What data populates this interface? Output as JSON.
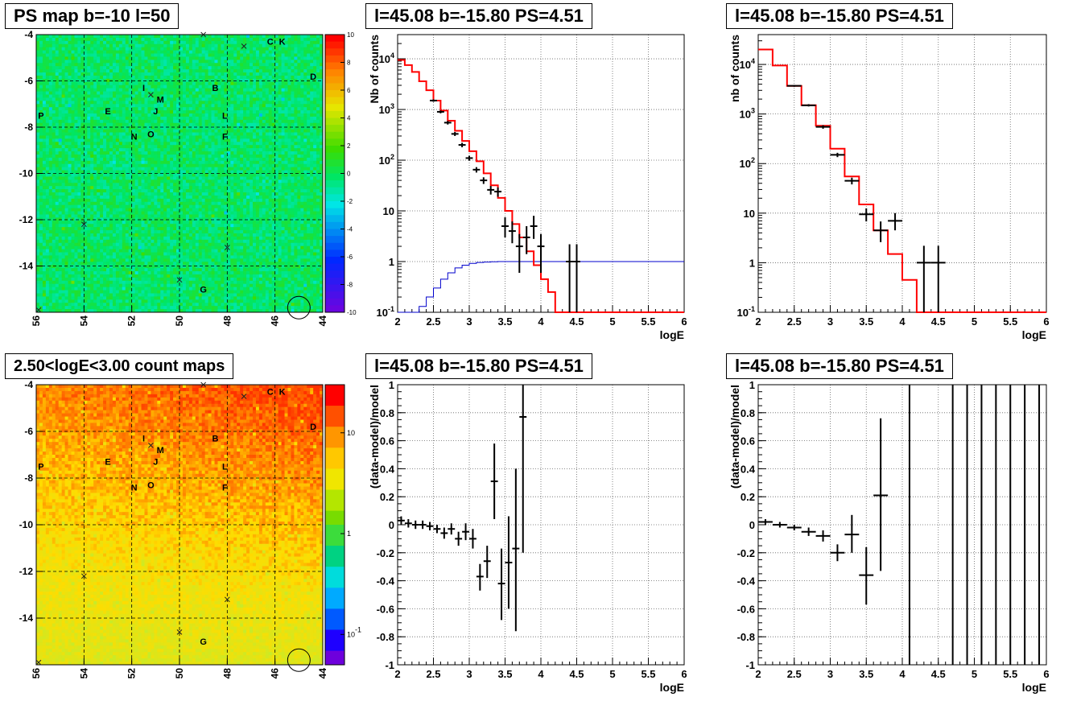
{
  "titles": {
    "ps_map": "PS map b=-10 l=50",
    "count_map": "2.50<logE<3.00 count maps",
    "spec1": "l=45.08 b=-15.80 PS=4.51",
    "spec2": "l=45.08 b=-15.80 PS=4.51",
    "res1": "l=45.08 b=-15.80 PS=4.51",
    "res2": "l=45.08 b=-15.80 PS=4.51"
  },
  "chart_data": [
    {
      "type": "heatmap",
      "id": "ps_map",
      "title": "PS map b=-10 l=50",
      "x_ticks": [
        "56",
        "54",
        "52",
        "50",
        "48",
        "46",
        "44"
      ],
      "y_ticks": [
        "-4",
        "-6",
        "-8",
        "-10",
        "-12",
        "-14"
      ],
      "xlim": [
        56,
        44
      ],
      "ylim": [
        -16,
        -4
      ],
      "colorbar_ticks": [
        "10",
        "8",
        "6",
        "4",
        "2",
        "0",
        "-2",
        "-4",
        "-6",
        "-8",
        "-10"
      ],
      "colorbar_range": [
        -10,
        10
      ],
      "dominant_value": 0,
      "grid": true,
      "source_labels": [
        {
          "t": "C",
          "l": 46.2,
          "b": -4.3
        },
        {
          "t": "K",
          "l": 45.7,
          "b": -4.3
        },
        {
          "t": "D",
          "l": 44.4,
          "b": -5.8
        },
        {
          "t": "I",
          "l": 51.5,
          "b": -6.3
        },
        {
          "t": "B",
          "l": 48.5,
          "b": -6.3
        },
        {
          "t": "M",
          "l": 50.8,
          "b": -6.8
        },
        {
          "t": "E",
          "l": 53.0,
          "b": -7.3
        },
        {
          "t": "J",
          "l": 51.0,
          "b": -7.3
        },
        {
          "t": "P",
          "l": 55.8,
          "b": -7.5
        },
        {
          "t": "L",
          "l": 48.1,
          "b": -7.5
        },
        {
          "t": "N",
          "l": 51.9,
          "b": -8.4
        },
        {
          "t": "O",
          "l": 51.2,
          "b": -8.3
        },
        {
          "t": "F",
          "l": 48.1,
          "b": -8.4
        },
        {
          "t": "G",
          "l": 49.0,
          "b": -15.0
        }
      ],
      "markers": [
        {
          "l": 49.0,
          "b": -4.0
        },
        {
          "l": 47.3,
          "b": -4.5
        },
        {
          "l": 51.2,
          "b": -6.6
        },
        {
          "l": 54.0,
          "b": -12.2
        },
        {
          "l": 48.0,
          "b": -13.2
        },
        {
          "l": 50.0,
          "b": -14.6
        },
        {
          "l": 55.9,
          "b": -15.9
        }
      ],
      "circle": {
        "l": 45.0,
        "b": -15.8
      }
    },
    {
      "type": "heatmap",
      "id": "count_map",
      "title": "2.50<logE<3.00 count maps",
      "x_ticks": [
        "56",
        "54",
        "52",
        "50",
        "48",
        "46",
        "44"
      ],
      "y_ticks": [
        "-4",
        "-6",
        "-8",
        "-10",
        "-12",
        "-14"
      ],
      "xlim": [
        56,
        44
      ],
      "ylim": [
        -16,
        -4
      ],
      "colorbar_ticks": [
        "10",
        "1",
        "10^-1"
      ],
      "colorbar_scale": "log",
      "colorbar_range": [
        0.05,
        30
      ],
      "grid": true,
      "source_labels": [
        {
          "t": "C",
          "l": 46.2,
          "b": -4.3
        },
        {
          "t": "K",
          "l": 45.7,
          "b": -4.3
        },
        {
          "t": "D",
          "l": 44.4,
          "b": -5.8
        },
        {
          "t": "I",
          "l": 51.5,
          "b": -6.3
        },
        {
          "t": "B",
          "l": 48.5,
          "b": -6.3
        },
        {
          "t": "M",
          "l": 50.8,
          "b": -6.8
        },
        {
          "t": "E",
          "l": 53.0,
          "b": -7.3
        },
        {
          "t": "J",
          "l": 51.0,
          "b": -7.3
        },
        {
          "t": "P",
          "l": 55.8,
          "b": -7.5
        },
        {
          "t": "L",
          "l": 48.1,
          "b": -7.5
        },
        {
          "t": "N",
          "l": 51.9,
          "b": -8.4
        },
        {
          "t": "O",
          "l": 51.2,
          "b": -8.3
        },
        {
          "t": "F",
          "l": 48.1,
          "b": -8.4
        },
        {
          "t": "G",
          "l": 49.0,
          "b": -15.0
        }
      ],
      "markers": [
        {
          "l": 49.0,
          "b": -4.0
        },
        {
          "l": 47.3,
          "b": -4.5
        },
        {
          "l": 51.2,
          "b": -6.6
        },
        {
          "l": 54.0,
          "b": -12.2
        },
        {
          "l": 48.0,
          "b": -13.2
        },
        {
          "l": 50.0,
          "b": -14.6
        },
        {
          "l": 55.9,
          "b": -15.9
        }
      ],
      "circle": {
        "l": 45.0,
        "b": -15.8
      }
    },
    {
      "type": "line",
      "id": "spec1",
      "title": "l=45.08 b=-15.80 PS=4.51",
      "xlabel": "logE",
      "ylabel": "Nb of counts",
      "xlim": [
        2,
        6
      ],
      "ylim": [
        0.1,
        30000
      ],
      "yscale": "log",
      "x_ticks": [
        "2",
        "2.5",
        "3",
        "3.5",
        "4",
        "4.5",
        "5",
        "5.5",
        "6"
      ],
      "y_ticks": [
        "10^-1",
        "1",
        "10",
        "10^2",
        "10^3",
        "10^4"
      ],
      "grid": true,
      "model": {
        "color": "#ff0000",
        "edges": [
          2,
          2.1,
          2.2,
          2.3,
          2.4,
          2.5,
          2.6,
          2.7,
          2.8,
          2.9,
          3,
          3.1,
          3.2,
          3.3,
          3.4,
          3.5,
          3.6,
          3.7,
          3.8,
          3.9,
          4,
          4.1,
          4.2,
          6
        ],
        "values": [
          9500,
          7500,
          5500,
          3600,
          2400,
          1500,
          950,
          600,
          380,
          240,
          150,
          95,
          55,
          32,
          18,
          10,
          5.5,
          3,
          1.6,
          0.85,
          0.45,
          0.25,
          0.1
        ]
      },
      "efficiency": {
        "color": "#0000cc",
        "edges": [
          2,
          2.1,
          2.2,
          2.3,
          2.4,
          2.5,
          2.6,
          2.7,
          2.8,
          2.9,
          3,
          3.1,
          3.2,
          3.3,
          3.4,
          6
        ],
        "values": [
          0.1,
          0.1,
          0.1,
          0.13,
          0.2,
          0.3,
          0.45,
          0.6,
          0.75,
          0.85,
          0.92,
          0.96,
          0.98,
          0.99,
          1.0
        ]
      },
      "data": [
        {
          "x": 2.5,
          "y": 1500,
          "lo": 1420,
          "hi": 1580
        },
        {
          "x": 2.6,
          "y": 900,
          "lo": 840,
          "hi": 960
        },
        {
          "x": 2.7,
          "y": 550,
          "lo": 505,
          "hi": 595
        },
        {
          "x": 2.8,
          "y": 330,
          "lo": 300,
          "hi": 360
        },
        {
          "x": 2.9,
          "y": 200,
          "lo": 180,
          "hi": 220
        },
        {
          "x": 3.0,
          "y": 110,
          "lo": 98,
          "hi": 122
        },
        {
          "x": 3.1,
          "y": 65,
          "lo": 57,
          "hi": 73
        },
        {
          "x": 3.2,
          "y": 40,
          "lo": 34,
          "hi": 46
        },
        {
          "x": 3.3,
          "y": 26,
          "lo": 21,
          "hi": 31
        },
        {
          "x": 3.4,
          "y": 24,
          "lo": 19,
          "hi": 29
        },
        {
          "x": 3.5,
          "y": 5,
          "lo": 3,
          "hi": 7.5
        },
        {
          "x": 3.6,
          "y": 4,
          "lo": 2.3,
          "hi": 6.2
        },
        {
          "x": 3.7,
          "y": 2,
          "lo": 0.6,
          "hi": 3.5
        },
        {
          "x": 3.8,
          "y": 3,
          "lo": 1.4,
          "hi": 5
        },
        {
          "x": 3.9,
          "y": 5,
          "lo": 2.8,
          "hi": 8
        },
        {
          "x": 4.0,
          "y": 2,
          "lo": 0.6,
          "hi": 3.5
        },
        {
          "x": 4.4,
          "y": 1,
          "lo": 0.1,
          "hi": 2.2
        },
        {
          "x": 4.5,
          "y": 1,
          "lo": 0.1,
          "hi": 2.2
        }
      ],
      "xerr": 0.05
    },
    {
      "type": "line",
      "id": "spec2",
      "title": "l=45.08 b=-15.80 PS=4.51",
      "xlabel": "logE",
      "ylabel": "nb of counts",
      "xlim": [
        2,
        6
      ],
      "ylim": [
        0.1,
        40000
      ],
      "yscale": "log",
      "x_ticks": [
        "2",
        "2.5",
        "3",
        "3.5",
        "4",
        "4.5",
        "5",
        "5.5",
        "6"
      ],
      "y_ticks": [
        "10^-1",
        "1",
        "10",
        "10^2",
        "10^3",
        "10^4"
      ],
      "grid": true,
      "model": {
        "color": "#ff0000",
        "edges": [
          2,
          2.2,
          2.4,
          2.6,
          2.8,
          3,
          3.2,
          3.4,
          3.6,
          3.8,
          4,
          4.2,
          6
        ],
        "values": [
          20000,
          9500,
          3700,
          1500,
          580,
          200,
          55,
          15,
          4.5,
          1.5,
          0.45,
          0.1
        ]
      },
      "data": [
        {
          "x": 2.5,
          "y": 3700,
          "lo": 3550,
          "hi": 3850
        },
        {
          "x": 2.7,
          "y": 1500,
          "lo": 1420,
          "hi": 1580
        },
        {
          "x": 2.9,
          "y": 550,
          "lo": 505,
          "hi": 595
        },
        {
          "x": 3.1,
          "y": 150,
          "lo": 135,
          "hi": 165
        },
        {
          "x": 3.3,
          "y": 45,
          "lo": 38,
          "hi": 52
        },
        {
          "x": 3.5,
          "y": 9.5,
          "lo": 6.8,
          "hi": 12.5
        },
        {
          "x": 3.7,
          "y": 4.5,
          "lo": 2.6,
          "hi": 6.8
        },
        {
          "x": 3.9,
          "y": 7,
          "lo": 4.5,
          "hi": 10
        },
        {
          "x": 4.3,
          "y": 1,
          "lo": 0.1,
          "hi": 2.2
        },
        {
          "x": 4.5,
          "y": 1,
          "lo": 0.1,
          "hi": 2.2
        }
      ],
      "xerr": 0.1
    },
    {
      "type": "scatter",
      "id": "res1",
      "title": "l=45.08 b=-15.80 PS=4.51",
      "xlabel": "logE",
      "ylabel": "(data-model)/model",
      "xlim": [
        2,
        6
      ],
      "ylim": [
        -1,
        1
      ],
      "x_ticks": [
        "2",
        "2.5",
        "3",
        "3.5",
        "4",
        "4.5",
        "5",
        "5.5",
        "6"
      ],
      "y_ticks": [
        "-1",
        "-0.8",
        "-0.6",
        "-0.4",
        "-0.2",
        "0",
        "0.2",
        "0.4",
        "0.6",
        "0.8",
        "1"
      ],
      "grid": true,
      "xerr": 0.05,
      "data": [
        {
          "x": 2.05,
          "y": 0.03,
          "lo": 0.0,
          "hi": 0.06
        },
        {
          "x": 2.15,
          "y": 0.01,
          "lo": -0.02,
          "hi": 0.04
        },
        {
          "x": 2.25,
          "y": 0.0,
          "lo": -0.03,
          "hi": 0.03
        },
        {
          "x": 2.35,
          "y": 0.0,
          "lo": -0.03,
          "hi": 0.03
        },
        {
          "x": 2.45,
          "y": -0.01,
          "lo": -0.04,
          "hi": 0.02
        },
        {
          "x": 2.55,
          "y": -0.03,
          "lo": -0.06,
          "hi": 0.0
        },
        {
          "x": 2.65,
          "y": -0.06,
          "lo": -0.1,
          "hi": -0.02
        },
        {
          "x": 2.75,
          "y": -0.03,
          "lo": -0.07,
          "hi": 0.01
        },
        {
          "x": 2.85,
          "y": -0.1,
          "lo": -0.15,
          "hi": -0.05
        },
        {
          "x": 2.95,
          "y": -0.05,
          "lo": -0.11,
          "hi": 0.01
        },
        {
          "x": 3.05,
          "y": -0.1,
          "lo": -0.17,
          "hi": -0.03
        },
        {
          "x": 3.15,
          "y": -0.37,
          "lo": -0.47,
          "hi": -0.28
        },
        {
          "x": 3.25,
          "y": -0.26,
          "lo": -0.38,
          "hi": -0.15
        },
        {
          "x": 3.35,
          "y": 0.31,
          "lo": 0.04,
          "hi": 0.58
        },
        {
          "x": 3.45,
          "y": -0.42,
          "lo": -0.68,
          "hi": -0.17
        },
        {
          "x": 3.55,
          "y": -0.27,
          "lo": -0.6,
          "hi": 0.06
        },
        {
          "x": 3.65,
          "y": -0.17,
          "lo": -0.76,
          "hi": 0.4
        },
        {
          "x": 3.75,
          "y": 0.77,
          "lo": -0.2,
          "hi": 1.0
        }
      ]
    },
    {
      "type": "scatter",
      "id": "res2",
      "title": "l=45.08 b=-15.80 PS=4.51",
      "xlabel": "logE",
      "ylabel": "(data-model)/model",
      "xlim": [
        2,
        6
      ],
      "ylim": [
        -1,
        1
      ],
      "x_ticks": [
        "2",
        "2.5",
        "3",
        "3.5",
        "4",
        "4.5",
        "5",
        "5.5",
        "6"
      ],
      "y_ticks": [
        "-1",
        "-0.8",
        "-0.6",
        "-0.4",
        "-0.2",
        "0",
        "0.2",
        "0.4",
        "0.6",
        "0.8",
        "1"
      ],
      "grid": true,
      "xerr": 0.1,
      "data": [
        {
          "x": 2.1,
          "y": 0.02,
          "lo": 0.0,
          "hi": 0.04
        },
        {
          "x": 2.3,
          "y": 0.0,
          "lo": -0.02,
          "hi": 0.02
        },
        {
          "x": 2.5,
          "y": -0.02,
          "lo": -0.04,
          "hi": 0.0
        },
        {
          "x": 2.7,
          "y": -0.05,
          "lo": -0.08,
          "hi": -0.02
        },
        {
          "x": 2.9,
          "y": -0.08,
          "lo": -0.12,
          "hi": -0.04
        },
        {
          "x": 3.1,
          "y": -0.2,
          "lo": -0.26,
          "hi": -0.14
        },
        {
          "x": 3.3,
          "y": -0.07,
          "lo": -0.2,
          "hi": 0.07
        },
        {
          "x": 3.5,
          "y": -0.36,
          "lo": -0.57,
          "hi": -0.16
        },
        {
          "x": 3.7,
          "y": 0.21,
          "lo": -0.33,
          "hi": 0.76
        }
      ],
      "vertical_lines_x": [
        4.1,
        4.7,
        4.9,
        5.1,
        5.3,
        5.5,
        5.7,
        5.9
      ]
    }
  ]
}
